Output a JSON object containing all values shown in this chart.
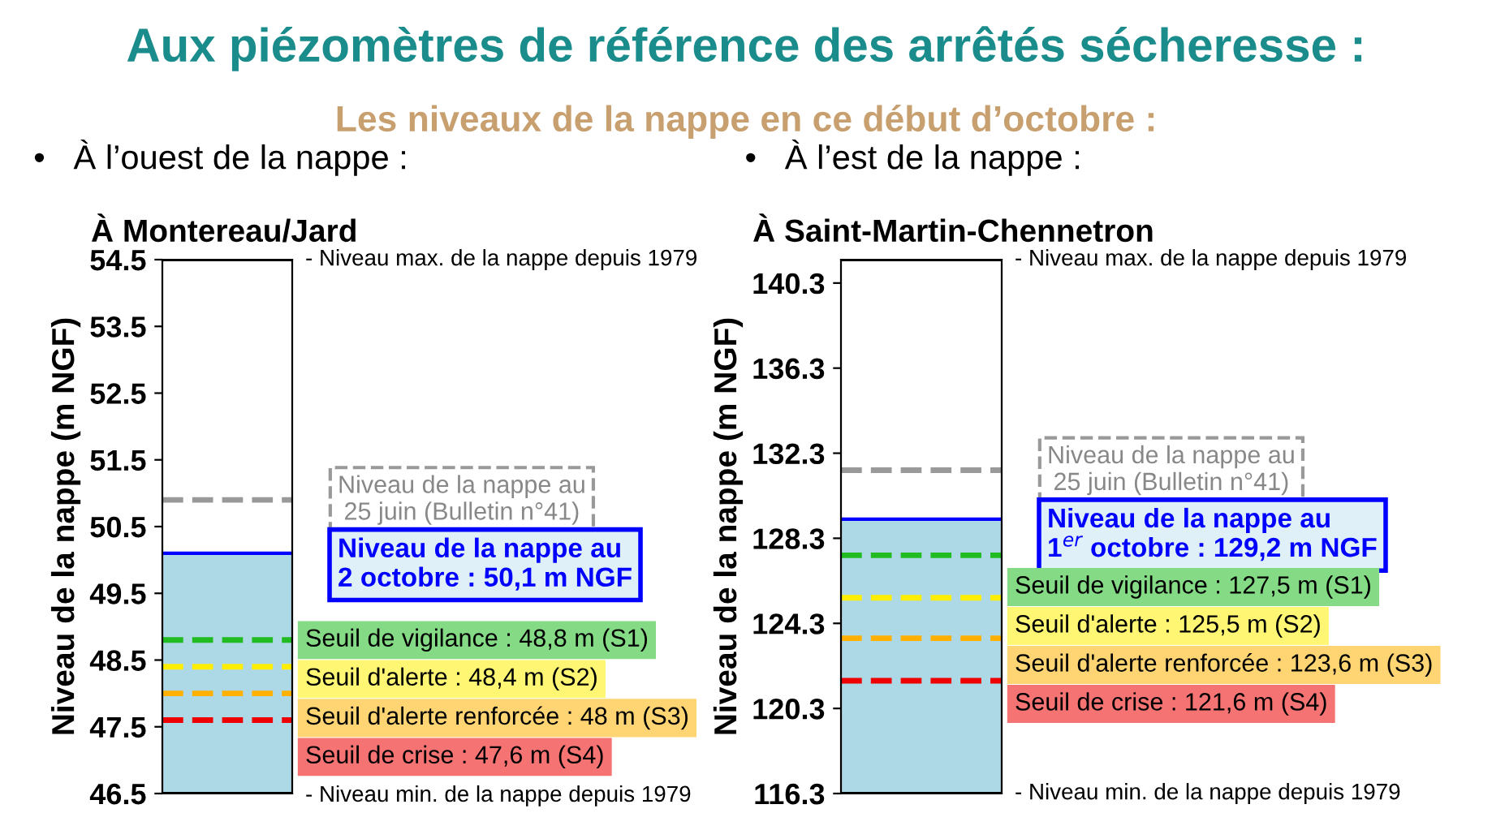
{
  "chart_data": [
    {
      "type": "bar",
      "title": "À Montereau/Jard",
      "ylabel": "Niveau de la nappe (m NGF)",
      "annotations": [
        "Aux piézomètres de référence des arrêtés sécheresse :",
        "Les niveaux de la nappe en ce début d’octobre :",
        "•   À l’ouest de la nappe :"
      ],
      "categories": [
        null
      ],
      "values": [
        3.6
      ],
      "base": [
        46.5
      ],
      "color": "#add8e6",
      "ylim": [
        46.5,
        54.5
      ],
      "yticks": [
        46.5,
        47.5,
        48.5,
        49.5,
        50.5,
        51.5,
        52.5,
        53.5,
        54.5
      ],
      "grid": false,
      "legend": false,
      "tick_labels": "y",
      "ref_lines": [
        {
          "axis": "y",
          "value": 54.5,
          "label": "- Niveau max. de la nappe depuis 1979",
          "color": "#000000",
          "line_style": "solid"
        },
        {
          "axis": "y",
          "value": 50.9,
          "label": "Niveau de la nappe au\n25 juin (Bulletin n°41)",
          "color": "#999999",
          "line_style": "dashed"
        },
        {
          "axis": "y",
          "value": 50.1,
          "label": "Niveau de la nappe au\n2 octobre : 50,1 m NGF",
          "color": "#0000ff",
          "line_style": "solid"
        },
        {
          "axis": "y",
          "value": 48.8,
          "label": "Seuil de vigilance : 48,8 m (S1)",
          "color": "#22bb22",
          "line_style": "dashed"
        },
        {
          "axis": "y",
          "value": 48.4,
          "label": "Seuil d'alerte : 48,4 m (S2)",
          "color": "#ffee00",
          "line_style": "dashed"
        },
        {
          "axis": "y",
          "value": 48.0,
          "label": "Seuil d'alerte renforcée : 48 m (S3)",
          "color": "#ffb000",
          "line_style": "dashed"
        },
        {
          "axis": "y",
          "value": 47.6,
          "label": "Seuil de crise : 47,6 m (S4)",
          "color": "#ee0000",
          "line_style": "dashed"
        },
        {
          "axis": "y",
          "value": 46.5,
          "label": "- Niveau min. de la nappe depuis 1979",
          "color": "#000000",
          "line_style": "solid"
        }
      ]
    },
    {
      "type": "bar",
      "title": "À Saint-Martin-Chennetron",
      "ylabel": "Niveau de la nappe (m NGF)",
      "annotations": [
        "•   À l’est de la nappe :"
      ],
      "categories": [
        null
      ],
      "values": [
        12.9
      ],
      "base": [
        116.3
      ],
      "color": "#add8e6",
      "ylim": [
        116.3,
        141.4
      ],
      "yticks": [
        116.3,
        120.3,
        124.3,
        128.3,
        132.3,
        136.3,
        140.3
      ],
      "grid": false,
      "legend": false,
      "tick_labels": "y",
      "ref_lines": [
        {
          "axis": "y",
          "value": 141.4,
          "label": "- Niveau max. de la nappe depuis 1979",
          "color": "#000000",
          "line_style": "solid"
        },
        {
          "axis": "y",
          "value": 131.5,
          "label": "Niveau de la nappe au\n25 juin (Bulletin n°41)",
          "color": "#999999",
          "line_style": "dashed"
        },
        {
          "axis": "y",
          "value": 129.2,
          "label": "Niveau de la nappe au\n1$^{er}$ octobre : 129,2 m NGF",
          "color": "#0000ff",
          "line_style": "solid"
        },
        {
          "axis": "y",
          "value": 127.5,
          "label": "Seuil de vigilance : 127,5 m (S1)",
          "color": "#22bb22",
          "line_style": "dashed"
        },
        {
          "axis": "y",
          "value": 125.5,
          "label": "Seuil d'alerte : 125,5 m (S2)",
          "color": "#ffee00",
          "line_style": "dashed"
        },
        {
          "axis": "y",
          "value": 123.6,
          "label": "Seuil d'alerte renforcée : 123,6 m (S3)",
          "color": "#ffb000",
          "line_style": "dashed"
        },
        {
          "axis": "y",
          "value": 121.6,
          "label": "Seuil de crise : 121,6 m (S4)",
          "color": "#ee0000",
          "line_style": "dashed"
        },
        {
          "axis": "y",
          "value": 116.3,
          "label": "- Niveau min. de la nappe depuis 1979",
          "color": "#000000",
          "line_style": "solid"
        }
      ]
    }
  ]
}
